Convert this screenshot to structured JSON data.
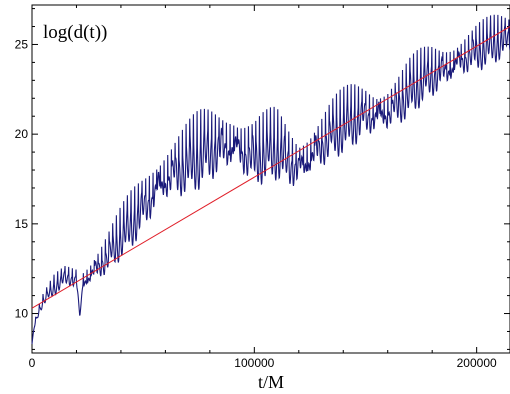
{
  "chart_data": {
    "type": "line",
    "title": "",
    "xlabel": "t/M",
    "ylabel": "",
    "annotation": "log(d(t))",
    "xlim": [
      0,
      215000
    ],
    "ylim": [
      7.8,
      27.2
    ],
    "x_ticks": [
      0,
      100000,
      200000
    ],
    "x_tick_labels": [
      "0",
      "100000",
      "200000"
    ],
    "y_ticks": [
      10,
      15,
      20,
      25
    ],
    "y_tick_labels": [
      "10",
      "15",
      "20",
      "25"
    ],
    "grid": false,
    "legend": "none",
    "series": [
      {
        "color": "#1a1a7a",
        "style": "oscillating",
        "x": [
          0,
          1000,
          3000,
          5000,
          10000,
          15000,
          20000,
          21500,
          23000,
          26000,
          30000,
          35000,
          40000,
          45000,
          50000,
          55000,
          60000,
          65000,
          70000,
          75000,
          80000,
          85000,
          90000,
          95000,
          100000,
          105000,
          110000,
          115000,
          120000,
          125000,
          130000,
          135000,
          140000,
          145000,
          150000,
          155000,
          160000,
          165000,
          170000,
          175000,
          180000,
          185000,
          190000,
          195000,
          200000,
          205000,
          210000,
          215000
        ],
        "y": [
          8.3,
          9.5,
          10.4,
          11.0,
          12.0,
          12.6,
          12.6,
          9.8,
          12.5,
          12.9,
          13.6,
          14.5,
          15.5,
          16.5,
          17.5,
          18.5,
          19.3,
          19.8,
          20.2,
          20.6,
          21.0,
          21.2,
          21.3,
          20.8,
          20.5,
          20.7,
          20.9,
          20.2,
          19.7,
          20.3,
          21.0,
          21.6,
          22.0,
          22.4,
          22.6,
          22.5,
          22.7,
          23.2,
          23.8,
          24.3,
          24.7,
          24.9,
          25.2,
          25.6,
          25.9,
          26.1,
          26.3,
          26.4
        ],
        "amplitude": [
          0,
          0.3,
          0.4,
          0.5,
          0.8,
          0.9,
          1.0,
          0,
          1.1,
          1.2,
          1.5,
          1.8,
          2.0,
          2.3,
          2.5,
          2.7,
          2.8,
          2.9,
          2.9,
          3.0,
          3.0,
          3.0,
          3.0,
          2.8,
          2.8,
          2.8,
          2.8,
          2.6,
          2.5,
          2.5,
          2.5,
          2.5,
          2.5,
          2.5,
          2.4,
          2.3,
          2.3,
          2.3,
          2.3,
          2.2,
          2.2,
          2.1,
          2.1,
          2.0,
          2.0,
          1.9,
          1.8,
          1.6
        ],
        "period": 3300
      },
      {
        "color": "#e0202a",
        "style": "straight",
        "x": [
          0,
          215000
        ],
        "y": [
          10.3,
          26.0
        ]
      }
    ]
  }
}
